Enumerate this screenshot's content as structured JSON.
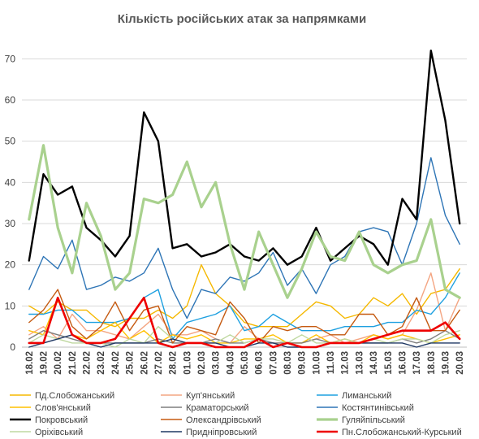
{
  "chart_data": {
    "type": "line",
    "title": "Кількість російських атак за напрямками",
    "xlabel": "",
    "ylabel": "",
    "ylim": [
      0,
      75
    ],
    "yticks": [
      0,
      10,
      20,
      30,
      40,
      50,
      60,
      70
    ],
    "grid": true,
    "legend_position": "bottom",
    "categories": [
      "18.02",
      "19.02",
      "20.02",
      "21.02",
      "22.02",
      "23.02",
      "24.02",
      "25.02",
      "26.02",
      "27.02",
      "28.02",
      "01.03",
      "02.03",
      "03.03",
      "04.03",
      "05.03",
      "06.03",
      "07.03",
      "08.03",
      "09.03",
      "10.03",
      "11.03",
      "12.03",
      "13.03",
      "14.03",
      "15.03",
      "16.03",
      "17.03",
      "18.03",
      "19.03",
      "20.03"
    ],
    "series": [
      {
        "name": "Пд.Слобожанський",
        "color": "#f5b800",
        "width": 1.4,
        "values": [
          10,
          8,
          11,
          9,
          9,
          6,
          5,
          7,
          7,
          9,
          7,
          10,
          20,
          13,
          10,
          6,
          5,
          5,
          5,
          8,
          11,
          10,
          7,
          8,
          12,
          10,
          13,
          8,
          13,
          14,
          19
        ]
      },
      {
        "name": "Куп'янський",
        "color": "#f4a582",
        "width": 1.4,
        "values": [
          3,
          5,
          2,
          8,
          4,
          4,
          3,
          2,
          5,
          8,
          3,
          3,
          4,
          2,
          1,
          5,
          2,
          1,
          1,
          1,
          2,
          3,
          1,
          2,
          3,
          2,
          3,
          9,
          18,
          4,
          12
        ]
      },
      {
        "name": "Лиманський",
        "color": "#1ea0e0",
        "width": 1.4,
        "values": [
          8,
          8,
          9,
          9,
          6,
          6,
          6,
          7,
          12,
          14,
          2,
          6,
          7,
          8,
          10,
          4,
          5,
          8,
          6,
          4,
          4,
          4,
          5,
          5,
          5,
          6,
          6,
          9,
          8,
          12,
          18
        ]
      },
      {
        "name": "Слов'янський",
        "color": "#ffc000",
        "width": 1.4,
        "values": [
          4,
          3,
          12,
          3,
          2,
          4,
          6,
          2,
          4,
          1,
          3,
          2,
          3,
          1,
          1,
          2,
          2,
          3,
          1,
          1,
          3,
          1,
          2,
          1,
          3,
          2,
          3,
          2,
          1,
          2,
          3
        ]
      },
      {
        "name": "Краматорський",
        "color": "#7f7f7f",
        "width": 1.4,
        "values": [
          2,
          4,
          3,
          2,
          1,
          1,
          1,
          1,
          1,
          2,
          1,
          1,
          1,
          2,
          1,
          1,
          2,
          1,
          1,
          1,
          2,
          1,
          1,
          1,
          1,
          1,
          2,
          1,
          2,
          4,
          2
        ]
      },
      {
        "name": "Костянтинівський",
        "color": "#2e75b6",
        "width": 1.4,
        "values": [
          14,
          22,
          19,
          26,
          14,
          15,
          17,
          16,
          18,
          24,
          14,
          7,
          14,
          13,
          17,
          16,
          18,
          23,
          15,
          19,
          13,
          20,
          22,
          28,
          29,
          28,
          20,
          30,
          46,
          32,
          25
        ]
      },
      {
        "name": "Покровський",
        "color": "#000000",
        "width": 2.4,
        "values": [
          21,
          42,
          37,
          39,
          29,
          26,
          22,
          27,
          57,
          50,
          24,
          25,
          22,
          23,
          25,
          22,
          21,
          24,
          20,
          22,
          29,
          21,
          24,
          27,
          25,
          20,
          36,
          31,
          72,
          55,
          30
        ]
      },
      {
        "name": "Олександрівський",
        "color": "#c55a11",
        "width": 1.4,
        "values": [
          6,
          9,
          14,
          5,
          2,
          5,
          11,
          4,
          9,
          10,
          1,
          5,
          4,
          3,
          11,
          7,
          1,
          5,
          4,
          5,
          5,
          3,
          3,
          8,
          8,
          3,
          5,
          12,
          4,
          4,
          9
        ]
      },
      {
        "name": "Гуляйпільський",
        "color": "#a9d18e",
        "width": 3.2,
        "values": [
          31,
          49,
          29,
          18,
          35,
          27,
          14,
          18,
          36,
          35,
          37,
          45,
          34,
          40,
          25,
          14,
          28,
          20,
          12,
          19,
          28,
          22,
          21,
          28,
          20,
          18,
          20,
          21,
          31,
          14,
          12
        ]
      },
      {
        "name": "Оріхівський",
        "color": "#bfd8a0",
        "width": 1.4,
        "values": [
          1,
          3,
          2,
          1,
          1,
          1,
          0,
          2,
          1,
          5,
          2,
          1,
          1,
          1,
          3,
          1,
          2,
          2,
          1,
          3,
          1,
          1,
          2,
          1,
          2,
          1,
          2,
          2,
          1,
          3,
          4
        ]
      },
      {
        "name": "Придніпровський",
        "color": "#1f3864",
        "width": 1.4,
        "values": [
          0,
          1,
          2,
          3,
          1,
          0,
          1,
          1,
          1,
          1,
          2,
          1,
          1,
          1,
          0,
          0,
          1,
          1,
          0,
          0,
          0,
          1,
          1,
          1,
          1,
          1,
          1,
          0,
          1,
          1,
          1
        ]
      },
      {
        "name": "Пн.Слобожанський-Курський",
        "color": "#ee0000",
        "width": 2.6,
        "values": [
          1,
          1,
          12,
          3,
          1,
          1,
          2,
          7,
          12,
          1,
          0,
          1,
          1,
          0,
          0,
          0,
          2,
          0,
          1,
          0,
          0,
          1,
          1,
          1,
          2,
          3,
          4,
          4,
          4,
          6,
          2
        ]
      }
    ]
  }
}
